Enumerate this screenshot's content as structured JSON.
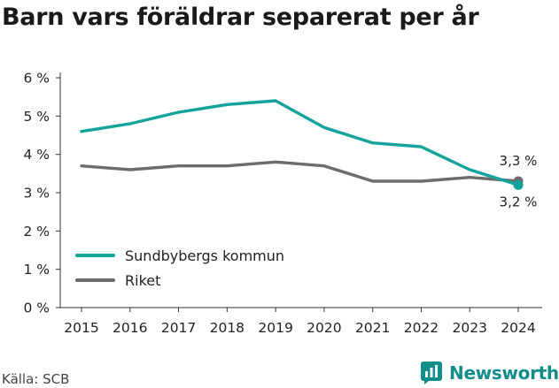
{
  "title": "Barn vars föräldrar separerat per år",
  "source": "Källa: SCB",
  "brand": "Newsworthy",
  "chart_data": {
    "type": "line",
    "title": "Barn vars föräldrar separerat per år",
    "x": [
      "2015",
      "2016",
      "2017",
      "2018",
      "2019",
      "2020",
      "2021",
      "2022",
      "2023",
      "2024"
    ],
    "ylim": [
      0,
      6
    ],
    "yticks": [
      0,
      1,
      2,
      3,
      4,
      5,
      6
    ],
    "ytick_labels": [
      "0 %",
      "1 %",
      "2 %",
      "3 %",
      "4 %",
      "5 %",
      "6 %"
    ],
    "grid": false,
    "legend_position": "bottom-left",
    "series": [
      {
        "name": "Sundbybergs kommun",
        "color": "#14a39a",
        "values": [
          4.6,
          4.8,
          5.1,
          5.3,
          5.4,
          4.7,
          4.3,
          4.2,
          3.6,
          3.2
        ],
        "end_label": "3,2 %"
      },
      {
        "name": "Riket",
        "color": "#6b6b70",
        "values": [
          3.7,
          3.6,
          3.7,
          3.7,
          3.8,
          3.7,
          3.3,
          3.3,
          3.4,
          3.3
        ],
        "end_label": "3,3 %"
      }
    ]
  }
}
